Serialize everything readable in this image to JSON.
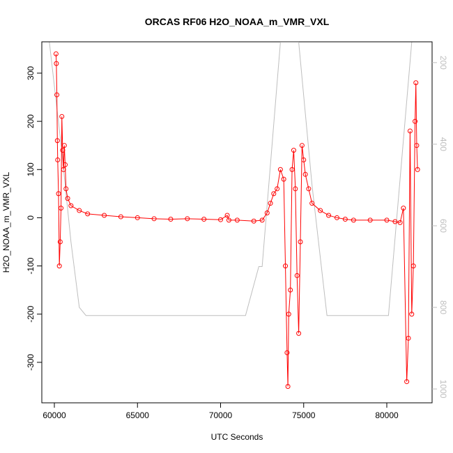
{
  "chart_data": {
    "type": "line",
    "title": "ORCAS RF06 H2O_NOAA_m_VMR_VXL",
    "x_label": "UTC Seconds",
    "y_label": "H2O_NOAA_m_VMR_VXL",
    "xlim": [
      59245,
      82725
    ],
    "xticks": [
      60000,
      65000,
      70000,
      75000,
      80000
    ],
    "ylim": [
      -384,
      365
    ],
    "yticks": [
      -300,
      -200,
      -100,
      0,
      100,
      200,
      300
    ],
    "y2lim": [
      1034,
      149
    ],
    "y2ticks": [
      200,
      400,
      600,
      800,
      1000
    ],
    "series": [
      {
        "color": "#ff0000",
        "markers": true,
        "x": [
          60100,
          60120,
          60150,
          60180,
          60200,
          60250,
          60300,
          60350,
          60400,
          60450,
          60500,
          60550,
          60600,
          60650,
          60700,
          60800,
          61000,
          61500,
          62000,
          63000,
          64000,
          65000,
          66000,
          67000,
          68000,
          69000,
          70000,
          70400,
          70500,
          71000,
          72000,
          72500,
          72800,
          73000,
          73200,
          73400,
          73600,
          73800,
          73900,
          74000,
          74050,
          74100,
          74200,
          74300,
          74400,
          74500,
          74600,
          74700,
          74800,
          74900,
          75000,
          75100,
          75300,
          75500,
          76000,
          76500,
          77000,
          77500,
          78000,
          79000,
          80000,
          80500,
          80800,
          81000,
          81200,
          81300,
          81400,
          81500,
          81600,
          81700,
          81750,
          81800,
          81850
        ],
        "values": [
          340,
          320,
          255,
          160,
          120,
          50,
          -100,
          -50,
          20,
          210,
          140,
          100,
          150,
          110,
          60,
          40,
          25,
          15,
          8,
          5,
          2,
          0,
          -2,
          -3,
          -2,
          -3,
          -4,
          5,
          -5,
          -5,
          -7,
          -5,
          10,
          30,
          50,
          60,
          100,
          80,
          -100,
          -280,
          -350,
          -200,
          -150,
          100,
          140,
          60,
          -120,
          -240,
          -50,
          150,
          120,
          90,
          60,
          30,
          15,
          5,
          0,
          -3,
          -5,
          -5,
          -5,
          -8,
          -10,
          20,
          -340,
          -250,
          180,
          -200,
          -100,
          200,
          280,
          150,
          100
        ]
      },
      {
        "color": "#bebebe",
        "axis": "y2",
        "markers": false,
        "x": [
          59700,
          60400,
          61000,
          61500,
          61900,
          71500,
          72300,
          72500,
          73600,
          74700,
          75500,
          76400,
          80100,
          81500
        ],
        "values": [
          150,
          400,
          640,
          800,
          820,
          820,
          700,
          700,
          150,
          150,
          500,
          820,
          820,
          150
        ]
      }
    ]
  }
}
